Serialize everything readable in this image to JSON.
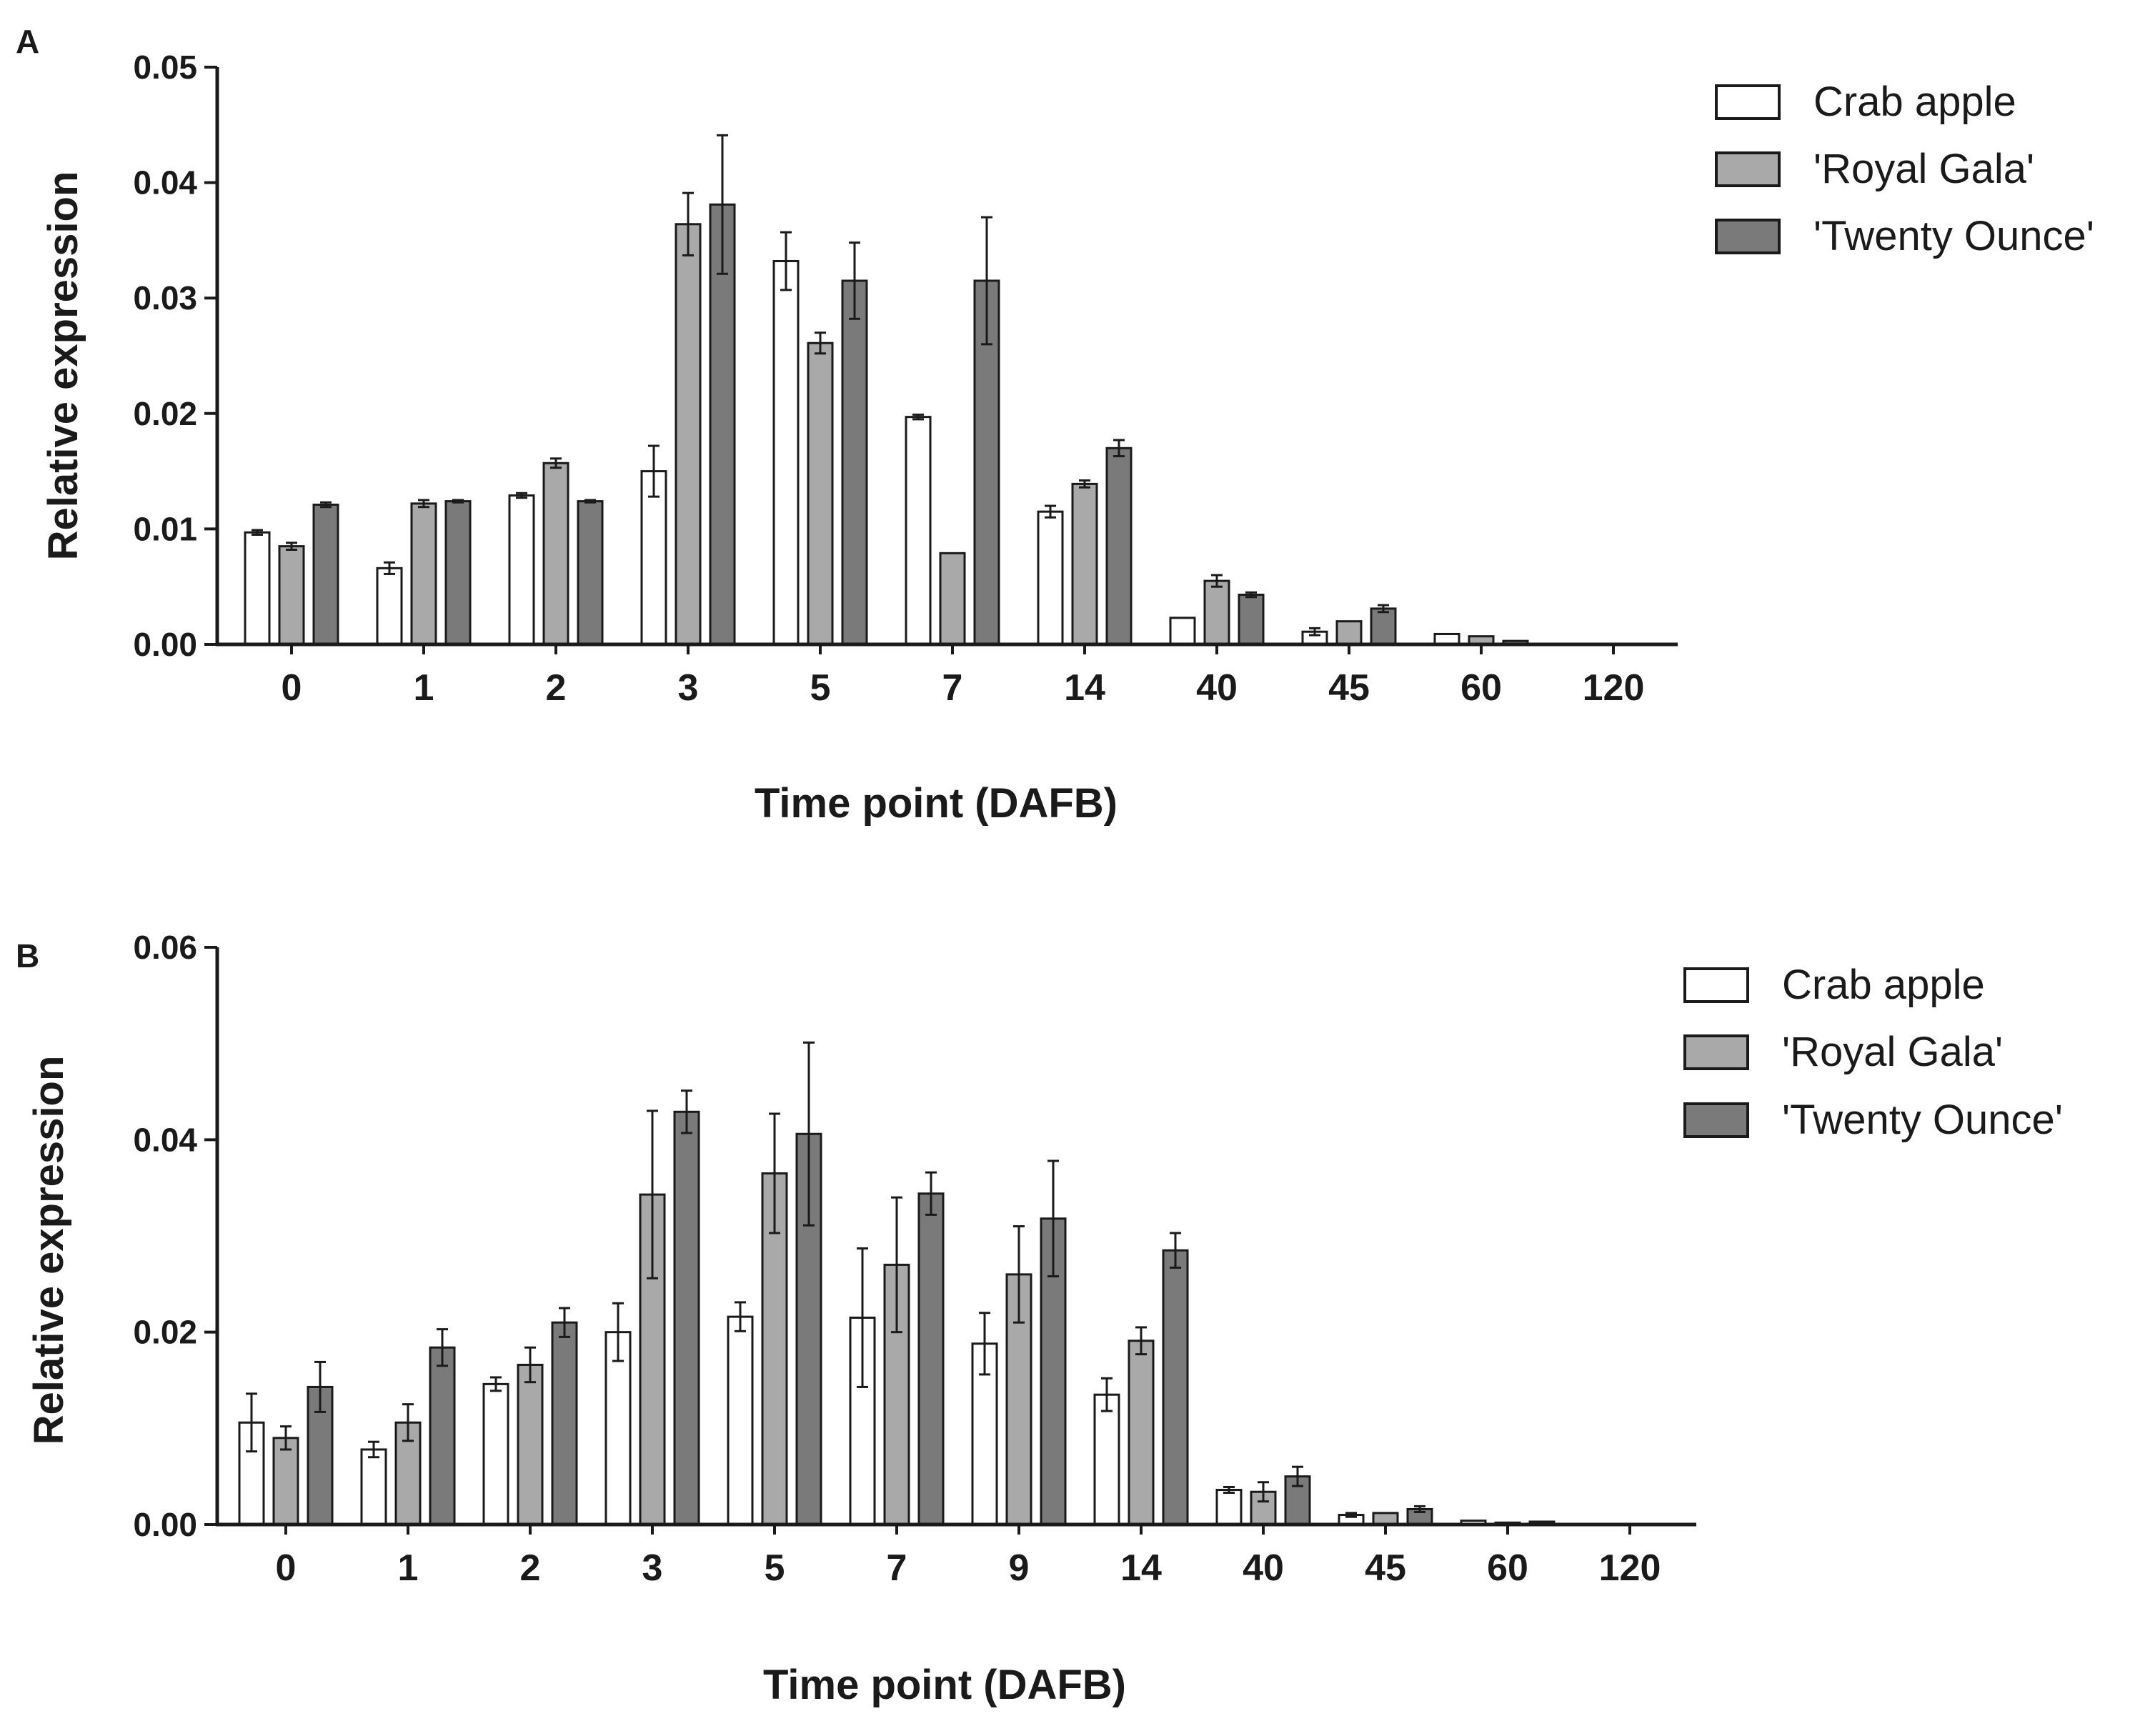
{
  "figure": {
    "colors": {
      "crab_apple": "#ffffff",
      "royal_gala": "#a9a9a9",
      "twenty_ounce": "#7a7a7a",
      "axis": "#1a1a1a"
    }
  },
  "chart_data": [
    {
      "panel": "A",
      "type": "bar",
      "xlabel": "Time point (DAFB)",
      "ylabel": "Relative expression",
      "ylim": [
        0,
        0.05
      ],
      "yticks": [
        "0.00",
        "0.01",
        "0.02",
        "0.03",
        "0.04",
        "0.05"
      ],
      "categories": [
        "0",
        "1",
        "2",
        "3",
        "5",
        "7",
        "14",
        "40",
        "45",
        "60",
        "120"
      ],
      "series": [
        {
          "name": "Crab apple",
          "color_key": "crab_apple",
          "values": [
            0.0097,
            0.0066,
            0.0129,
            0.015,
            0.0332,
            0.0197,
            0.0115,
            0.0023,
            0.0011,
            0.0009,
            0.0
          ],
          "errors": [
            0.0002,
            0.0005,
            0.0002,
            0.0022,
            0.0025,
            0.0002,
            0.0005,
            0.0,
            0.0003,
            0.0,
            0.0
          ]
        },
        {
          "name": "'Royal Gala'",
          "color_key": "royal_gala",
          "values": [
            0.0085,
            0.0122,
            0.0157,
            0.0364,
            0.0261,
            0.0079,
            0.0139,
            0.0055,
            0.002,
            0.0007,
            0.0
          ],
          "errors": [
            0.0003,
            0.0003,
            0.0004,
            0.0027,
            0.0009,
            0.0,
            0.0003,
            0.0005,
            0.0,
            0.0,
            0.0
          ]
        },
        {
          "name": "'Twenty Ounce'",
          "color_key": "twenty_ounce",
          "values": [
            0.0121,
            0.0124,
            0.0124,
            0.0381,
            0.0315,
            0.0315,
            0.017,
            0.0043,
            0.0031,
            0.0003,
            0.0
          ],
          "errors": [
            0.0002,
            0.0001,
            0.0001,
            0.006,
            0.0033,
            0.0055,
            0.0007,
            0.0002,
            0.0003,
            0.0,
            0.0
          ]
        }
      ]
    },
    {
      "panel": "B",
      "type": "bar",
      "xlabel": "Time point (DAFB)",
      "ylabel": "Relative expression",
      "ylim": [
        0,
        0.06
      ],
      "yticks": [
        "0.00",
        "0.02",
        "0.04",
        "0.06"
      ],
      "categories": [
        "0",
        "1",
        "2",
        "3",
        "5",
        "7",
        "9",
        "14",
        "40",
        "45",
        "60",
        "120"
      ],
      "series": [
        {
          "name": "Crab apple",
          "color_key": "crab_apple",
          "values": [
            0.0106,
            0.0078,
            0.0146,
            0.02,
            0.0216,
            0.0215,
            0.0188,
            0.0135,
            0.0036,
            0.001,
            0.0004,
            0.0
          ],
          "errors": [
            0.003,
            0.0008,
            0.0007,
            0.003,
            0.0015,
            0.0072,
            0.0032,
            0.0017,
            0.0003,
            0.0002,
            0.0,
            0.0
          ]
        },
        {
          "name": "'Royal Gala'",
          "color_key": "royal_gala",
          "values": [
            0.009,
            0.0106,
            0.0166,
            0.0343,
            0.0365,
            0.027,
            0.026,
            0.0191,
            0.0034,
            0.0012,
            0.0002,
            0.0
          ],
          "errors": [
            0.0012,
            0.0019,
            0.0018,
            0.0087,
            0.0062,
            0.007,
            0.005,
            0.0014,
            0.001,
            0.0,
            0.0,
            0.0
          ]
        },
        {
          "name": "'Twenty Ounce'",
          "color_key": "twenty_ounce",
          "values": [
            0.0143,
            0.0184,
            0.021,
            0.0429,
            0.0406,
            0.0344,
            0.0318,
            0.0285,
            0.005,
            0.0016,
            0.0003,
            0.0
          ],
          "errors": [
            0.0026,
            0.0019,
            0.0015,
            0.0022,
            0.0095,
            0.0022,
            0.006,
            0.0018,
            0.001,
            0.0003,
            0.0,
            0.0
          ]
        }
      ]
    }
  ]
}
